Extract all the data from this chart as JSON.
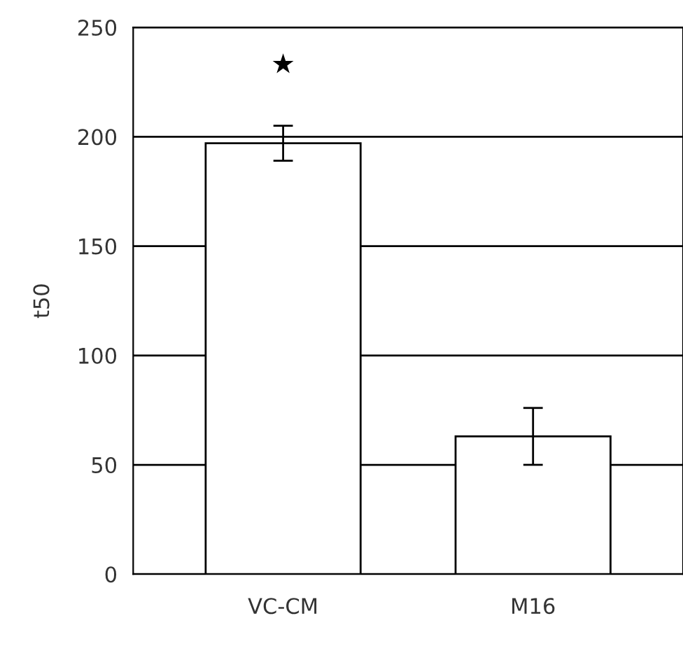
{
  "chart_data": {
    "type": "bar",
    "ylabel": "t50",
    "categories": [
      "VC-CM",
      "M16"
    ],
    "values": [
      197,
      63
    ],
    "errors": [
      8,
      13
    ],
    "color": "#ffffff",
    "ylim": [
      0,
      250
    ],
    "yticks": [
      0,
      50,
      100,
      150,
      200,
      250
    ],
    "grid": "y",
    "annotations": [
      "★"
    ]
  }
}
